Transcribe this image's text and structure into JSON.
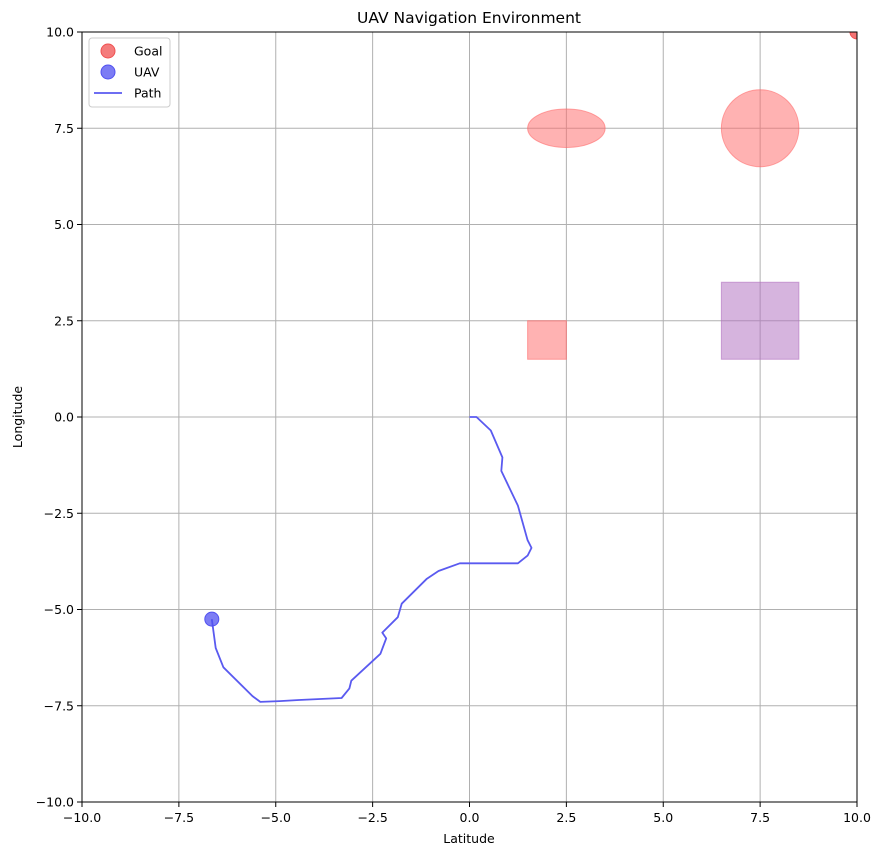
{
  "chart_data": {
    "type": "scatter",
    "title": "UAV Navigation Environment",
    "xlabel": "Latitude",
    "ylabel": "Longitude",
    "xlim": [
      -10,
      10
    ],
    "ylim": [
      -10,
      10
    ],
    "xticks": [
      -10,
      -7.5,
      -5,
      -2.5,
      0,
      2.5,
      5,
      7.5,
      10
    ],
    "yticks": [
      -10,
      -7.5,
      -5,
      -2.5,
      0,
      2.5,
      5,
      7.5,
      10
    ],
    "xtick_labels": [
      "−10.0",
      "−7.5",
      "−5.0",
      "−2.5",
      "0.0",
      "2.5",
      "5.0",
      "7.5",
      "10.0"
    ],
    "ytick_labels": [
      "−10.0",
      "−7.5",
      "−5.0",
      "−2.5",
      "0.0",
      "2.5",
      "5.0",
      "7.5",
      "10.0"
    ],
    "grid": true,
    "legend": {
      "position": "upper-left",
      "entries": [
        {
          "label": "Goal",
          "kind": "marker",
          "color": "#f05050"
        },
        {
          "label": "UAV",
          "kind": "marker",
          "color": "#5050f0"
        },
        {
          "label": "Path",
          "kind": "line",
          "color": "#5a5af0"
        }
      ]
    },
    "goal": {
      "x": 10,
      "y": 10,
      "color": "#f05050"
    },
    "uav": {
      "x": -6.65,
      "y": -5.25,
      "color": "#5050f0"
    },
    "path": {
      "color": "#5a5af0",
      "points": [
        [
          0,
          0
        ],
        [
          0.18,
          0
        ],
        [
          0.55,
          -0.35
        ],
        [
          0.85,
          -1.05
        ],
        [
          0.82,
          -1.4
        ],
        [
          1.25,
          -2.3
        ],
        [
          1.5,
          -3.2
        ],
        [
          1.6,
          -3.4
        ],
        [
          1.5,
          -3.6
        ],
        [
          1.25,
          -3.8
        ],
        [
          -0.25,
          -3.8
        ],
        [
          -0.8,
          -4.0
        ],
        [
          -1.1,
          -4.2
        ],
        [
          -1.75,
          -4.85
        ],
        [
          -1.85,
          -5.2
        ],
        [
          -2.25,
          -5.6
        ],
        [
          -2.15,
          -5.75
        ],
        [
          -2.3,
          -6.15
        ],
        [
          -3.05,
          -6.85
        ],
        [
          -3.1,
          -7.05
        ],
        [
          -3.3,
          -7.3
        ],
        [
          -4.4,
          -7.35
        ],
        [
          -4.9,
          -7.38
        ],
        [
          -5.4,
          -7.4
        ],
        [
          -5.6,
          -7.25
        ],
        [
          -6.35,
          -6.5
        ],
        [
          -6.55,
          -6.0
        ],
        [
          -6.65,
          -5.25
        ]
      ]
    },
    "obstacles": [
      {
        "shape": "ellipse",
        "cx": 2.5,
        "cy": 7.5,
        "rx": 1.0,
        "ry": 0.5,
        "color": "#ff6b6b"
      },
      {
        "shape": "circle",
        "cx": 7.5,
        "cy": 7.5,
        "r": 1.0,
        "color": "#ff6b6b"
      },
      {
        "shape": "rect",
        "x0": 1.5,
        "y0": 1.5,
        "x1": 2.5,
        "y1": 2.5,
        "color": "#ff6b6b"
      },
      {
        "shape": "rect",
        "x0": 6.5,
        "y0": 1.5,
        "x1": 8.5,
        "y1": 3.5,
        "color": "#b070c0"
      }
    ]
  }
}
